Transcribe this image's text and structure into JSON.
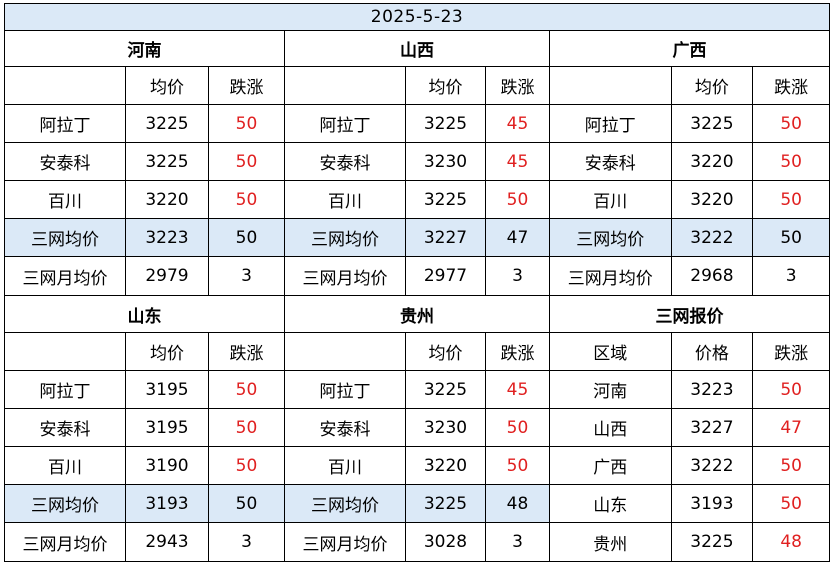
{
  "date": "2025-5-23",
  "regions": [
    {
      "name": "河南",
      "header": [
        "",
        "均价",
        "跌涨"
      ],
      "rows": [
        {
          "label": "阿拉丁",
          "price": "3225",
          "change": "50",
          "red": true
        },
        {
          "label": "安泰科",
          "price": "3225",
          "change": "50",
          "red": true
        },
        {
          "label": "百川",
          "price": "3220",
          "change": "50",
          "red": true
        },
        {
          "label": "三网均价",
          "price": "3223",
          "change": "50",
          "red": false,
          "shade": true
        },
        {
          "label": "三网月均价",
          "price": "2979",
          "change": "3",
          "red": false
        }
      ]
    },
    {
      "name": "山西",
      "header": [
        "",
        "均价",
        "跌涨"
      ],
      "rows": [
        {
          "label": "阿拉丁",
          "price": "3225",
          "change": "45",
          "red": true
        },
        {
          "label": "安泰科",
          "price": "3230",
          "change": "45",
          "red": true
        },
        {
          "label": "百川",
          "price": "3225",
          "change": "50",
          "red": true
        },
        {
          "label": "三网均价",
          "price": "3227",
          "change": "47",
          "red": false,
          "shade": true
        },
        {
          "label": "三网月均价",
          "price": "2977",
          "change": "3",
          "red": false
        }
      ]
    },
    {
      "name": "广西",
      "header": [
        "",
        "均价",
        "跌涨"
      ],
      "rows": [
        {
          "label": "阿拉丁",
          "price": "3225",
          "change": "50",
          "red": true
        },
        {
          "label": "安泰科",
          "price": "3220",
          "change": "50",
          "red": true
        },
        {
          "label": "百川",
          "price": "3220",
          "change": "50",
          "red": true
        },
        {
          "label": "三网均价",
          "price": "3222",
          "change": "50",
          "red": false,
          "shade": true
        },
        {
          "label": "三网月均价",
          "price": "2968",
          "change": "3",
          "red": false
        }
      ]
    },
    {
      "name": "山东",
      "header": [
        "",
        "均价",
        "跌涨"
      ],
      "rows": [
        {
          "label": "阿拉丁",
          "price": "3195",
          "change": "50",
          "red": true
        },
        {
          "label": "安泰科",
          "price": "3195",
          "change": "50",
          "red": true
        },
        {
          "label": "百川",
          "price": "3190",
          "change": "50",
          "red": true
        },
        {
          "label": "三网均价",
          "price": "3193",
          "change": "50",
          "red": false,
          "shade": true
        },
        {
          "label": "三网月均价",
          "price": "2943",
          "change": "3",
          "red": false
        }
      ]
    },
    {
      "name": "贵州",
      "header": [
        "",
        "均价",
        "跌涨"
      ],
      "rows": [
        {
          "label": "阿拉丁",
          "price": "3225",
          "change": "45",
          "red": true
        },
        {
          "label": "安泰科",
          "price": "3230",
          "change": "50",
          "red": true
        },
        {
          "label": "百川",
          "price": "3220",
          "change": "50",
          "red": true
        },
        {
          "label": "三网均价",
          "price": "3225",
          "change": "48",
          "red": false,
          "shade": true
        },
        {
          "label": "三网月均价",
          "price": "3028",
          "change": "3",
          "red": false
        }
      ]
    },
    {
      "name": "三网报价",
      "header": [
        "区域",
        "价格",
        "跌涨"
      ],
      "rows": [
        {
          "label": "河南",
          "price": "3223",
          "change": "50",
          "red": true
        },
        {
          "label": "山西",
          "price": "3227",
          "change": "47",
          "red": true
        },
        {
          "label": "广西",
          "price": "3222",
          "change": "50",
          "red": true
        },
        {
          "label": "山东",
          "price": "3193",
          "change": "50",
          "red": true
        },
        {
          "label": "贵州",
          "price": "3225",
          "change": "48",
          "red": true
        }
      ]
    }
  ],
  "colors": {
    "header_fill": "#dbe9f7",
    "rise": "#e02020",
    "grid": "#000000"
  }
}
